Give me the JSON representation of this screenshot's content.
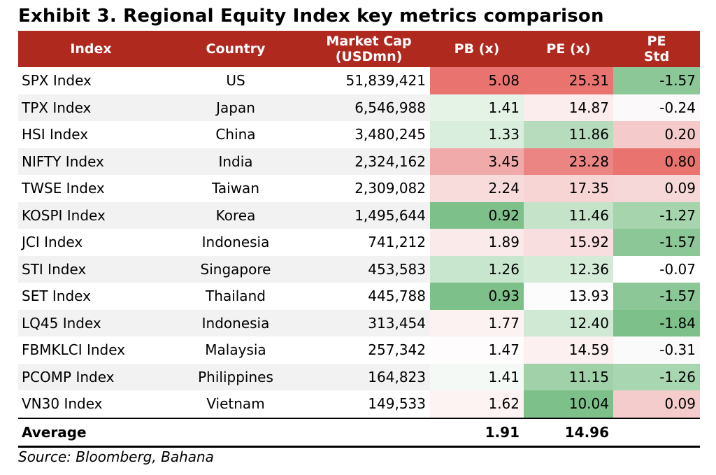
{
  "title": "Exhibit 3. Regional Equity Index key metrics comparison",
  "headers": {
    "index": "Index",
    "country": "Country",
    "mcap_line1": "Market Cap",
    "mcap_line2": "(USDmn)",
    "pb": "PB (x)",
    "pe": "PE (x)",
    "pestd_line1": "PE",
    "pestd_line2": "Std"
  },
  "rows": [
    {
      "index": "SPX Index",
      "country": "US",
      "mcap": "51,839,421",
      "pb": "5.08",
      "pe": "25.31",
      "pestd": "-1.57",
      "pb_color": "#e8736f",
      "pe_color": "#e8736f",
      "pestd_color": "#8cc897"
    },
    {
      "index": "TPX Index",
      "country": "Japan",
      "mcap": "6,546,988",
      "pb": "1.41",
      "pe": "14.87",
      "pestd": "-0.24",
      "pb_color": "#e5f3e7",
      "pe_color": "#fbeded",
      "pestd_color": "#fbf9f9"
    },
    {
      "index": "HSI Index",
      "country": "China",
      "mcap": "3,480,245",
      "pb": "1.33",
      "pe": "11.86",
      "pestd": "0.20",
      "pb_color": "#daeedd",
      "pe_color": "#b7dcbd",
      "pestd_color": "#f4caca"
    },
    {
      "index": "NIFTY Index",
      "country": "India",
      "mcap": "2,324,162",
      "pb": "3.45",
      "pe": "23.28",
      "pestd": "0.80",
      "pb_color": "#f0aaaa",
      "pe_color": "#eb8584",
      "pestd_color": "#e8736f"
    },
    {
      "index": "TWSE Index",
      "country": "Taiwan",
      "mcap": "2,309,082",
      "pb": "2.24",
      "pe": "17.35",
      "pestd": "0.09",
      "pb_color": "#f8dbdb",
      "pe_color": "#f7d5d5",
      "pestd_color": "#f7d8d8"
    },
    {
      "index": "KOSPI Index",
      "country": "Korea",
      "mcap": "1,495,644",
      "pb": "0.92",
      "pe": "11.46",
      "pestd": "-1.27",
      "pb_color": "#7dc08a",
      "pe_color": "#c4e3c9",
      "pestd_color": "#a5d4ad"
    },
    {
      "index": "JCI Index",
      "country": "Indonesia",
      "mcap": "741,212",
      "pb": "1.89",
      "pe": "15.92",
      "pestd": "-1.57",
      "pb_color": "#fbeaea",
      "pe_color": "#f8dede",
      "pestd_color": "#8cc897"
    },
    {
      "index": "STI Index",
      "country": "Singapore",
      "mcap": "453,583",
      "pb": "1.26",
      "pe": "12.36",
      "pestd": "-0.07",
      "pb_color": "#c8e6cd",
      "pe_color": "#d3ebd7",
      "pestd_color": "#ffffff"
    },
    {
      "index": "SET Index",
      "country": "Thailand",
      "mcap": "445,788",
      "pb": "0.93",
      "pe": "13.93",
      "pestd": "-1.57",
      "pb_color": "#7dc08a",
      "pe_color": "#fcfcfc",
      "pestd_color": "#8cc897"
    },
    {
      "index": "LQ45 Index",
      "country": "Indonesia",
      "mcap": "313,454",
      "pb": "1.77",
      "pe": "12.40",
      "pestd": "-1.84",
      "pb_color": "#fdf2f2",
      "pe_color": "#cfe9d4",
      "pestd_color": "#7dc08a"
    },
    {
      "index": "FBMKLCI Index",
      "country": "Malaysia",
      "mcap": "257,342",
      "pb": "1.47",
      "pe": "14.59",
      "pestd": "-0.31",
      "pb_color": "#fefcfc",
      "pe_color": "#fcf0f0",
      "pestd_color": "#fafafa"
    },
    {
      "index": "PCOMP Index",
      "country": "Philippines",
      "mcap": "164,823",
      "pb": "1.41",
      "pe": "11.15",
      "pestd": "-1.26",
      "pb_color": "#f4f9f5",
      "pe_color": "#a0d1a8",
      "pestd_color": "#a8d6b0"
    },
    {
      "index": "VN30 Index",
      "country": "Vietnam",
      "mcap": "149,533",
      "pb": "1.62",
      "pe": "10.04",
      "pestd": "0.09",
      "pb_color": "#fdf3f3",
      "pe_color": "#7dc08a",
      "pestd_color": "#f4cccc"
    }
  ],
  "average": {
    "label": "Average",
    "pb": "1.91",
    "pe": "14.96"
  },
  "source": "Source: Bloomberg, Bahana",
  "colors": {
    "header_bg": "#b0291f",
    "header_text": "#ffffff",
    "zebra": "#f2f2f2"
  }
}
